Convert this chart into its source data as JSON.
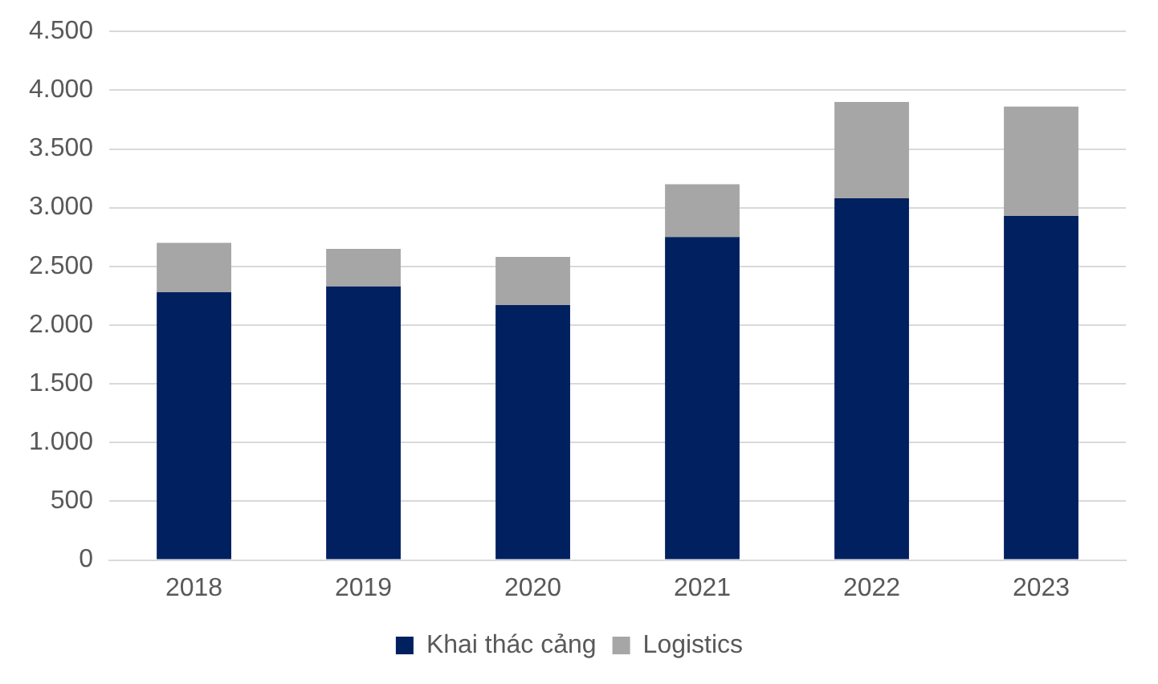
{
  "chart_data": {
    "type": "bar",
    "stacked": true,
    "categories": [
      "2018",
      "2019",
      "2020",
      "2021",
      "2022",
      "2023"
    ],
    "series": [
      {
        "name": "Khai thác cảng",
        "color": "#002060",
        "values": [
          2280,
          2330,
          2170,
          2750,
          3080,
          2930
        ]
      },
      {
        "name": "Logistics",
        "color": "#a6a6a6",
        "values": [
          420,
          320,
          410,
          450,
          820,
          930
        ]
      }
    ],
    "ylim": [
      0,
      4500
    ],
    "yticks": [
      {
        "value": 0,
        "label": "0"
      },
      {
        "value": 500,
        "label": "500"
      },
      {
        "value": 1000,
        "label": "1.000"
      },
      {
        "value": 1500,
        "label": "1.500"
      },
      {
        "value": 2000,
        "label": "2.000"
      },
      {
        "value": 2500,
        "label": "2.500"
      },
      {
        "value": 3000,
        "label": "3.000"
      },
      {
        "value": 3500,
        "label": "3.500"
      },
      {
        "value": 4000,
        "label": "4.000"
      },
      {
        "value": 4500,
        "label": "4.500"
      }
    ],
    "grid": "y",
    "legend": "bottom"
  }
}
